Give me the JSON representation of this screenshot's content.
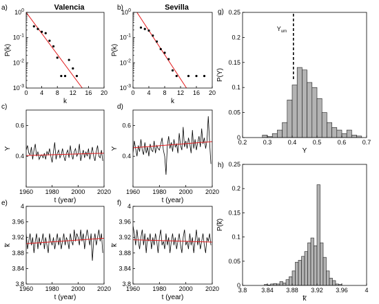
{
  "chart_data": [
    {
      "id": "a",
      "panel_label": "a)",
      "title": "Valencia",
      "type": "scatter",
      "xlabel": "k",
      "ylabel": "P(k)",
      "xlim": [
        0,
        20
      ],
      "ylim": [
        0.001,
        1
      ],
      "yscale": "log",
      "x_ticks": [
        "0",
        "4",
        "8",
        "12",
        "16",
        "20"
      ],
      "y_ticks": [
        {
          "v": 1,
          "m": "10",
          "e": "0"
        },
        {
          "v": 0.1,
          "m": "10",
          "e": "-1"
        },
        {
          "v": 0.01,
          "m": "10",
          "e": "-2"
        },
        {
          "v": 0.001,
          "m": "10",
          "e": "-3"
        }
      ],
      "points": {
        "x": [
          2,
          3,
          4,
          5,
          6,
          7,
          8,
          9,
          10,
          11,
          12,
          13
        ],
        "y": [
          0.28,
          0.22,
          0.17,
          0.15,
          0.075,
          0.045,
          0.016,
          0.003,
          0.003,
          0.013,
          0.006,
          0.003
        ]
      },
      "fit": {
        "x": [
          0,
          14.4
        ],
        "y": [
          1.0,
          0.001
        ],
        "color": "#e31a1c"
      },
      "point_color": "#000000"
    },
    {
      "id": "b",
      "panel_label": "b)",
      "title": "Sevilla",
      "type": "scatter",
      "xlabel": "k",
      "ylabel": "P(k)",
      "xlim": [
        0,
        20
      ],
      "ylim": [
        0.001,
        1
      ],
      "yscale": "log",
      "x_ticks": [
        "0",
        "4",
        "8",
        "12",
        "16",
        "20"
      ],
      "y_ticks": [
        {
          "v": 1,
          "m": "10",
          "e": "0"
        },
        {
          "v": 0.1,
          "m": "10",
          "e": "-1"
        },
        {
          "v": 0.01,
          "m": "10",
          "e": "-2"
        },
        {
          "v": 0.001,
          "m": "10",
          "e": "-3"
        }
      ],
      "points": {
        "x": [
          2,
          3,
          4,
          5,
          6,
          7,
          8,
          9,
          10,
          11,
          14,
          16,
          18
        ],
        "y": [
          0.25,
          0.22,
          0.19,
          0.12,
          0.07,
          0.035,
          0.025,
          0.014,
          0.005,
          0.003,
          0.003,
          0.003,
          0.003
        ]
      },
      "fit": {
        "x": [
          1,
          13.5
        ],
        "y": [
          1.0,
          0.001
        ],
        "color": "#e31a1c"
      },
      "point_color": "#000000"
    },
    {
      "id": "c",
      "panel_label": "c)",
      "type": "line",
      "xlabel": "t (year)",
      "ylabel": "Y",
      "xlim": [
        1960,
        2020
      ],
      "ylim": [
        0.2,
        0.7
      ],
      "x_ticks": [
        "1960",
        "1980",
        "2000",
        "2020"
      ],
      "y_ticks": [
        {
          "v": 0.4,
          "label": "0.4"
        },
        {
          "v": 0.6,
          "label": "0.6"
        }
      ],
      "x_start": 1960,
      "x_step": 1,
      "series": [
        {
          "values": [
            0.44,
            0.47,
            0.42,
            0.41,
            0.46,
            0.38,
            0.44,
            0.48,
            0.4,
            0.43,
            0.38,
            0.4,
            0.41,
            0.39,
            0.42,
            0.38,
            0.43,
            0.41,
            0.45,
            0.4,
            0.36,
            0.43,
            0.49,
            0.38,
            0.42,
            0.44,
            0.39,
            0.41,
            0.45,
            0.4,
            0.37,
            0.42,
            0.44,
            0.39,
            0.47,
            0.41,
            0.38,
            0.43,
            0.45,
            0.4,
            0.42,
            0.48,
            0.37,
            0.41,
            0.44,
            0.39,
            0.43,
            0.4,
            0.45,
            0.38,
            0.42,
            0.46,
            0.4,
            0.37,
            0.43,
            0.47,
            0.4,
            0.39,
            0.44,
            0.37
          ],
          "color": "#000000"
        }
      ],
      "fit": {
        "x": [
          1960,
          2020
        ],
        "y": [
          0.405,
          0.42
        ],
        "color": "#e31a1c"
      }
    },
    {
      "id": "d",
      "panel_label": "d)",
      "type": "line",
      "xlabel": "t (year)",
      "ylabel": "Y",
      "xlim": [
        1960,
        2020
      ],
      "ylim": [
        0.2,
        0.7
      ],
      "x_ticks": [
        "1960",
        "1980",
        "2000",
        "2020"
      ],
      "y_ticks": [
        {
          "v": 0.4,
          "label": "0.4"
        },
        {
          "v": 0.6,
          "label": "0.6"
        }
      ],
      "x_start": 1960,
      "x_step": 1,
      "series": [
        {
          "values": [
            0.42,
            0.5,
            0.45,
            0.4,
            0.47,
            0.43,
            0.51,
            0.44,
            0.41,
            0.49,
            0.42,
            0.46,
            0.4,
            0.48,
            0.44,
            0.43,
            0.5,
            0.42,
            0.47,
            0.45,
            0.44,
            0.48,
            0.52,
            0.44,
            0.4,
            0.28,
            0.47,
            0.53,
            0.45,
            0.49,
            0.43,
            0.51,
            0.46,
            0.48,
            0.42,
            0.55,
            0.47,
            0.44,
            0.59,
            0.46,
            0.5,
            0.45,
            0.52,
            0.48,
            0.42,
            0.57,
            0.45,
            0.51,
            0.44,
            0.49,
            0.53,
            0.46,
            0.58,
            0.48,
            0.52,
            0.45,
            0.5,
            0.66,
            0.49,
            0.35
          ],
          "color": "#000000"
        }
      ],
      "fit": {
        "x": [
          1960,
          2020
        ],
        "y": [
          0.455,
          0.495
        ],
        "color": "#e31a1c"
      }
    },
    {
      "id": "e",
      "panel_label": "e)",
      "type": "line",
      "xlabel": "t (year)",
      "ylabel": "k̅",
      "xlim": [
        1960,
        2020
      ],
      "ylim": [
        3.8,
        4.0
      ],
      "x_ticks": [
        "1960",
        "1980",
        "2000",
        "2020"
      ],
      "y_ticks": [
        {
          "v": 3.8,
          "label": "3.8"
        },
        {
          "v": 3.84,
          "label": "3.84"
        },
        {
          "v": 3.88,
          "label": "3.88"
        },
        {
          "v": 3.92,
          "label": "3.92"
        },
        {
          "v": 3.96,
          "label": "3.96"
        },
        {
          "v": 4.0,
          "label": "4"
        }
      ],
      "x_start": 1960,
      "x_step": 1,
      "series": [
        {
          "values": [
            3.93,
            3.89,
            3.91,
            3.93,
            3.9,
            3.92,
            3.88,
            3.91,
            3.93,
            3.89,
            3.92,
            3.9,
            3.91,
            3.93,
            3.89,
            3.92,
            3.9,
            3.88,
            3.93,
            3.91,
            3.9,
            3.92,
            3.89,
            3.91,
            3.93,
            3.9,
            3.92,
            3.89,
            3.91,
            3.93,
            3.9,
            3.92,
            3.91,
            3.89,
            3.93,
            3.91,
            3.9,
            3.94,
            3.91,
            3.93,
            3.92,
            3.9,
            3.94,
            3.91,
            3.93,
            3.89,
            3.92,
            3.94,
            3.92,
            3.9,
            3.93,
            3.86,
            3.91,
            3.93,
            3.9,
            3.92,
            3.94,
            3.91,
            3.93,
            3.88
          ],
          "color": "#000000"
        }
      ],
      "fit": {
        "x": [
          1960,
          2020
        ],
        "y": [
          3.904,
          3.918
        ],
        "color": "#e31a1c"
      }
    },
    {
      "id": "f",
      "panel_label": "f)",
      "type": "line",
      "xlabel": "t (year)",
      "ylabel": "k̅",
      "xlim": [
        1960,
        2020
      ],
      "ylim": [
        3.8,
        4.0
      ],
      "x_ticks": [
        "1960",
        "1980",
        "2000",
        "2020"
      ],
      "y_ticks": [
        {
          "v": 3.8,
          "label": "3.8"
        },
        {
          "v": 3.84,
          "label": "3.84"
        },
        {
          "v": 3.88,
          "label": "3.88"
        },
        {
          "v": 3.92,
          "label": "3.92"
        },
        {
          "v": 3.96,
          "label": "3.96"
        },
        {
          "v": 4.0,
          "label": "4"
        }
      ],
      "x_start": 1960,
      "x_step": 1,
      "series": [
        {
          "values": [
            3.95,
            3.93,
            3.9,
            3.94,
            3.91,
            3.89,
            3.92,
            3.94,
            3.9,
            3.93,
            3.88,
            3.92,
            3.91,
            3.93,
            3.89,
            3.92,
            3.9,
            3.93,
            3.91,
            3.88,
            3.92,
            3.94,
            3.9,
            3.91,
            3.89,
            3.93,
            3.9,
            3.92,
            3.88,
            3.91,
            3.93,
            3.9,
            3.92,
            3.89,
            3.91,
            3.93,
            3.9,
            3.88,
            3.92,
            3.94,
            3.9,
            3.91,
            3.89,
            3.93,
            3.9,
            3.92,
            3.88,
            3.91,
            3.94,
            3.9,
            3.92,
            3.89,
            3.91,
            3.93,
            3.9,
            3.88,
            3.92,
            3.91,
            3.93,
            3.9
          ],
          "color": "#000000"
        }
      ],
      "fit": {
        "x": [
          1960,
          2020
        ],
        "y": [
          3.914,
          3.908
        ],
        "color": "#e31a1c"
      }
    },
    {
      "id": "g",
      "panel_label": "g)",
      "type": "bar",
      "xlabel": "Y",
      "ylabel": "P(Y)",
      "xlim": [
        0.2,
        0.7
      ],
      "ylim": [
        0,
        0.25
      ],
      "x_ticks": [
        "0.2",
        "0.3",
        "0.4",
        "0.5",
        "0.6",
        "0.7"
      ],
      "y_ticks": [
        {
          "v": 0,
          "label": "0"
        },
        {
          "v": 0.05,
          "label": "0.05"
        },
        {
          "v": 0.1,
          "label": "0.1"
        },
        {
          "v": 0.15,
          "label": "0.15"
        },
        {
          "v": 0.2,
          "label": "0.2"
        },
        {
          "v": 0.25,
          "label": "0.25"
        }
      ],
      "bin_width": 0.02,
      "bin_starts": [
        0.28,
        0.3,
        0.32,
        0.34,
        0.36,
        0.38,
        0.4,
        0.42,
        0.44,
        0.46,
        0.48,
        0.5,
        0.52,
        0.54,
        0.56,
        0.58,
        0.6,
        0.62,
        0.64,
        0.66
      ],
      "values": [
        0.005,
        0.002,
        0.008,
        0.015,
        0.03,
        0.075,
        0.105,
        0.14,
        0.135,
        0.11,
        0.1,
        0.078,
        0.05,
        0.03,
        0.02,
        0.015,
        0.008,
        0.015,
        0.005,
        0.003
      ],
      "bar_color": "#b3b3b3",
      "reference_line": {
        "x": 0.405,
        "label": "Y",
        "label_sub": "um"
      }
    },
    {
      "id": "h",
      "panel_label": "h)",
      "type": "bar",
      "xlabel": "k̅",
      "ylabel": "P(k̅)",
      "xlim": [
        3.8,
        4.0
      ],
      "ylim": [
        0,
        0.25
      ],
      "x_ticks": [
        "3.8",
        "3.84",
        "3.88",
        "3.92",
        "3.96",
        "4"
      ],
      "y_ticks": [
        {
          "v": 0,
          "label": "0"
        },
        {
          "v": 0.05,
          "label": "0.05"
        },
        {
          "v": 0.1,
          "label": "0.1"
        },
        {
          "v": 0.15,
          "label": "0.15"
        },
        {
          "v": 0.2,
          "label": "0.2"
        },
        {
          "v": 0.25,
          "label": "0.25"
        }
      ],
      "bin_width": 0.005,
      "bin_starts": [
        3.835,
        3.84,
        3.845,
        3.85,
        3.855,
        3.86,
        3.865,
        3.87,
        3.875,
        3.88,
        3.885,
        3.89,
        3.895,
        3.9,
        3.905,
        3.91,
        3.915,
        3.92,
        3.925,
        3.93,
        3.935,
        3.94,
        3.945,
        3.95,
        3.955
      ],
      "values": [
        0.002,
        0.001,
        0.003,
        0.004,
        0.003,
        0.008,
        0.005,
        0.012,
        0.018,
        0.03,
        0.048,
        0.052,
        0.06,
        0.07,
        0.088,
        0.098,
        0.082,
        0.208,
        0.088,
        0.058,
        0.03,
        0.015,
        0.01,
        0.003,
        0.002
      ],
      "bar_color": "#b3b3b3"
    }
  ]
}
